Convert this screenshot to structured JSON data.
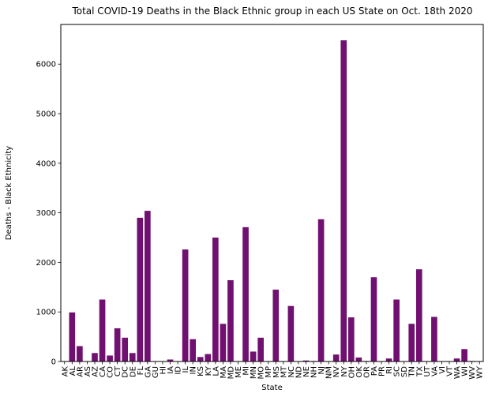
{
  "chart_data": {
    "type": "bar",
    "title": "Total COVID-19 Deaths in the Black Ethnic group in each US State on Oct. 18th 2020",
    "xlabel": "State",
    "ylabel": "Deaths - Black Ethnicity",
    "ylim": [
      0,
      6800
    ],
    "yticks": [
      0,
      1000,
      2000,
      3000,
      4000,
      5000,
      6000
    ],
    "grid": false,
    "bar_color": "#701070",
    "categories": [
      "AK",
      "AL",
      "AR",
      "AS",
      "AZ",
      "CA",
      "CO",
      "CT",
      "DC",
      "DE",
      "FL",
      "GA",
      "GU",
      "HI",
      "IA",
      "ID",
      "IL",
      "IN",
      "KS",
      "KY",
      "LA",
      "MA",
      "MD",
      "ME",
      "MI",
      "MN",
      "MO",
      "MP",
      "MS",
      "MT",
      "NC",
      "ND",
      "NE",
      "NH",
      "NJ",
      "NM",
      "NV",
      "NY",
      "OH",
      "OK",
      "OR",
      "PA",
      "PR",
      "RI",
      "SC",
      "SD",
      "TN",
      "TX",
      "UT",
      "VA",
      "VI",
      "VT",
      "WA",
      "WI",
      "WV",
      "WY"
    ],
    "values": [
      0,
      990,
      310,
      0,
      170,
      1250,
      120,
      670,
      480,
      170,
      2900,
      3040,
      0,
      0,
      40,
      0,
      2260,
      450,
      90,
      150,
      2500,
      760,
      1640,
      0,
      2710,
      200,
      480,
      0,
      1450,
      0,
      1120,
      0,
      20,
      10,
      2870,
      0,
      140,
      6480,
      890,
      80,
      10,
      1700,
      0,
      60,
      1250,
      0,
      760,
      1860,
      0,
      900,
      0,
      0,
      60,
      250,
      10,
      0
    ]
  }
}
